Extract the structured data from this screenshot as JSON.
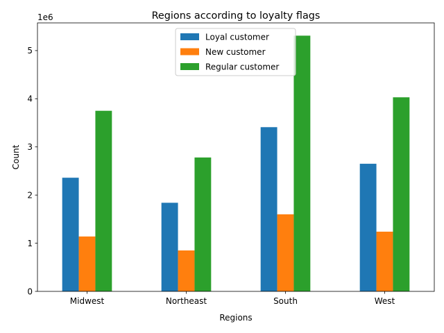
{
  "chart_data": {
    "type": "bar",
    "title": "Regions according to loyalty flags",
    "xlabel": "Regions",
    "ylabel": "Count",
    "y_offset_label": "1e6",
    "categories": [
      "Midwest",
      "Northeast",
      "South",
      "West"
    ],
    "series": [
      {
        "name": "Loyal customer",
        "color": "#1f77b4",
        "values": [
          2360000,
          1840000,
          3410000,
          2650000
        ]
      },
      {
        "name": "New customer",
        "color": "#ff7f0e",
        "values": [
          1140000,
          850000,
          1600000,
          1240000
        ]
      },
      {
        "name": "Regular customer",
        "color": "#2ca02c",
        "values": [
          3750000,
          2780000,
          5310000,
          4030000
        ]
      }
    ],
    "ylim": [
      0,
      5575000
    ],
    "yticks": [
      0,
      1000000,
      2000000,
      3000000,
      4000000,
      5000000
    ],
    "ytick_labels": [
      "0",
      "1",
      "2",
      "3",
      "4",
      "5"
    ],
    "legend_position": "upper-center",
    "grid": false
  }
}
